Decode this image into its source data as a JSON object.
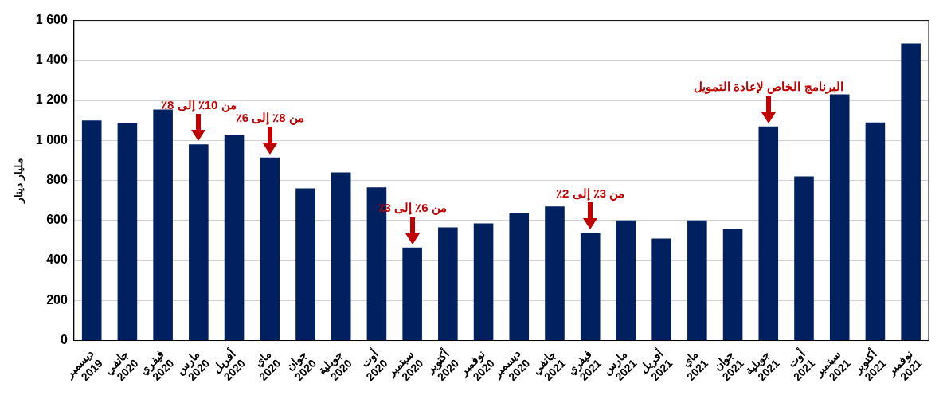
{
  "chart_data": {
    "type": "bar",
    "ylabel": "مليار دينار",
    "categories": [
      "ديسمبر 2019",
      "جانفي 2020",
      "فيفري 2020",
      "مارس 2020",
      "أفريل 2020",
      "ماي 2020",
      "جوان 2020",
      "جويلية 2020",
      "أوت 2020",
      "سبتمبر 2020",
      "أكتوبر 2020",
      "نوفمبر 2020",
      "ديسمبر 2020",
      "جانفي 2021",
      "فيفري 2021",
      "مارس 2021",
      "أفريل 2021",
      "ماي 2021",
      "جوان 2021",
      "جويلية 2021",
      "أوت 2021",
      "سبتمبر 2021",
      "أكتوبر 2021",
      "نوفمبر 2021"
    ],
    "values": [
      1100,
      1085,
      1155,
      980,
      1025,
      915,
      760,
      840,
      765,
      465,
      565,
      585,
      635,
      670,
      540,
      600,
      510,
      600,
      555,
      1070,
      820,
      1230,
      1090,
      1485
    ],
    "color": "#002060",
    "ylim": [
      0,
      1600
    ],
    "yticks": [
      0,
      200,
      400,
      600,
      800,
      {
        "value": 1000,
        "label": "1 000"
      },
      {
        "value": 1200,
        "label": "1 200"
      },
      {
        "value": 1400,
        "label": "1 400"
      },
      {
        "value": 1600,
        "label": "1 600"
      }
    ],
    "grid": "y",
    "legend": false,
    "annotations": [
      {
        "text": "من 10٪ إلى 8٪",
        "x": "مارس 2020",
        "y": 980
      },
      {
        "text": "من 8٪ إلى 6٪",
        "x": "ماي 2020",
        "y": 915
      },
      {
        "text": "من 6٪ إلى 3٪",
        "x": "سبتمبر 2020",
        "y": 465
      },
      {
        "text": "من 3٪ إلى 2٪",
        "x": "فيفري 2021",
        "y": 540
      },
      {
        "text": "البرنامج الخاص لإعادة التمويل",
        "x": "جويلية 2021",
        "y": 1070
      }
    ]
  }
}
